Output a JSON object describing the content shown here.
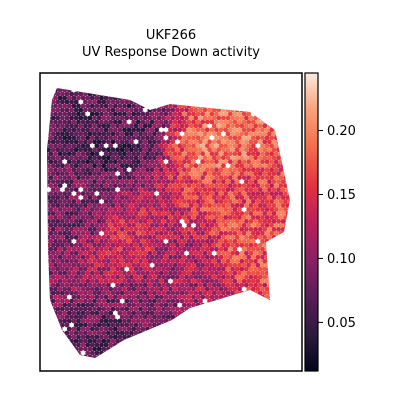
{
  "chart_data": {
    "type": "heatmap",
    "title_lines": [
      "UKF266",
      "UV Response Down activity"
    ],
    "xlabel": "",
    "ylabel": "",
    "grid": false,
    "colormap": "rocket",
    "colorbar": {
      "range": [
        0.012,
        0.245
      ],
      "ticks": [
        0.05,
        0.1,
        0.15,
        0.2
      ],
      "tick_labels": [
        "0.05",
        "0.10",
        "0.15",
        "0.20"
      ]
    },
    "spatial_pattern": {
      "description_free": true,
      "regions": [
        {
          "value": 0.06,
          "at": [
            0.25,
            0.2
          ]
        },
        {
          "value": 0.07,
          "at": [
            0.3,
            0.12
          ]
        },
        {
          "value": 0.085,
          "at": [
            0.15,
            0.45
          ]
        },
        {
          "value": 0.14,
          "at": [
            0.32,
            0.55
          ]
        },
        {
          "value": 0.16,
          "at": [
            0.75,
            0.4
          ]
        },
        {
          "value": 0.19,
          "at": [
            0.7,
            0.2
          ]
        },
        {
          "value": 0.17,
          "at": [
            0.85,
            0.55
          ]
        },
        {
          "value": 0.09,
          "at": [
            0.45,
            0.85
          ]
        },
        {
          "value": 0.07,
          "at": [
            0.3,
            0.95
          ]
        },
        {
          "value": 0.12,
          "at": [
            0.55,
            0.65
          ]
        }
      ]
    }
  }
}
